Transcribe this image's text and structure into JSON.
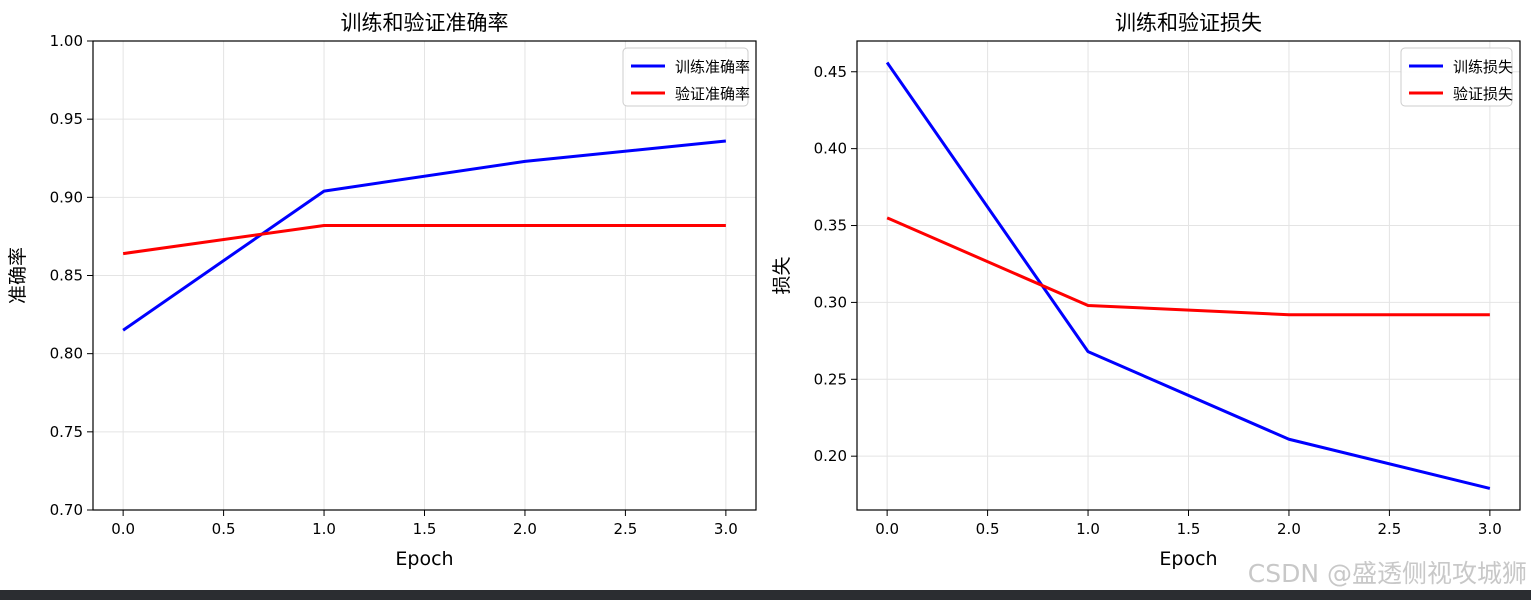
{
  "colors": {
    "train": "#0000ff",
    "val": "#ff0000",
    "grid": "#e4e4e4",
    "axis": "#000000"
  },
  "watermark": "CSDN @盛透侧视攻城狮",
  "chart_data": [
    {
      "type": "line",
      "title": "训练和验证准确率",
      "xlabel": "Epoch",
      "ylabel": "准确率",
      "xlim": [
        -0.15,
        3.15
      ],
      "ylim": [
        0.7,
        1.0
      ],
      "xticks": [
        "0.0",
        "0.5",
        "1.0",
        "1.5",
        "2.0",
        "2.5",
        "3.0"
      ],
      "yticks": [
        "0.70",
        "0.75",
        "0.80",
        "0.85",
        "0.90",
        "0.95",
        "1.00"
      ],
      "grid": true,
      "legend_position": "top-right",
      "x": [
        0,
        1,
        2,
        3
      ],
      "series": [
        {
          "name": "训练准确率",
          "color": "#0000ff",
          "values": [
            0.815,
            0.904,
            0.923,
            0.936
          ]
        },
        {
          "name": "验证准确率",
          "color": "#ff0000",
          "values": [
            0.864,
            0.882,
            0.882,
            0.882
          ]
        }
      ]
    },
    {
      "type": "line",
      "title": "训练和验证损失",
      "xlabel": "Epoch",
      "ylabel": "损失",
      "xlim": [
        -0.15,
        3.15
      ],
      "ylim": [
        0.165,
        0.47
      ],
      "xticks": [
        "0.0",
        "0.5",
        "1.0",
        "1.5",
        "2.0",
        "2.5",
        "3.0"
      ],
      "yticks": [
        "0.20",
        "0.25",
        "0.30",
        "0.35",
        "0.40",
        "0.45"
      ],
      "grid": true,
      "legend_position": "top-right",
      "x": [
        0,
        1,
        2,
        3
      ],
      "series": [
        {
          "name": "训练损失",
          "color": "#0000ff",
          "values": [
            0.456,
            0.268,
            0.211,
            0.179
          ]
        },
        {
          "name": "验证损失",
          "color": "#ff0000",
          "values": [
            0.355,
            0.298,
            0.292,
            0.292
          ]
        }
      ]
    }
  ]
}
